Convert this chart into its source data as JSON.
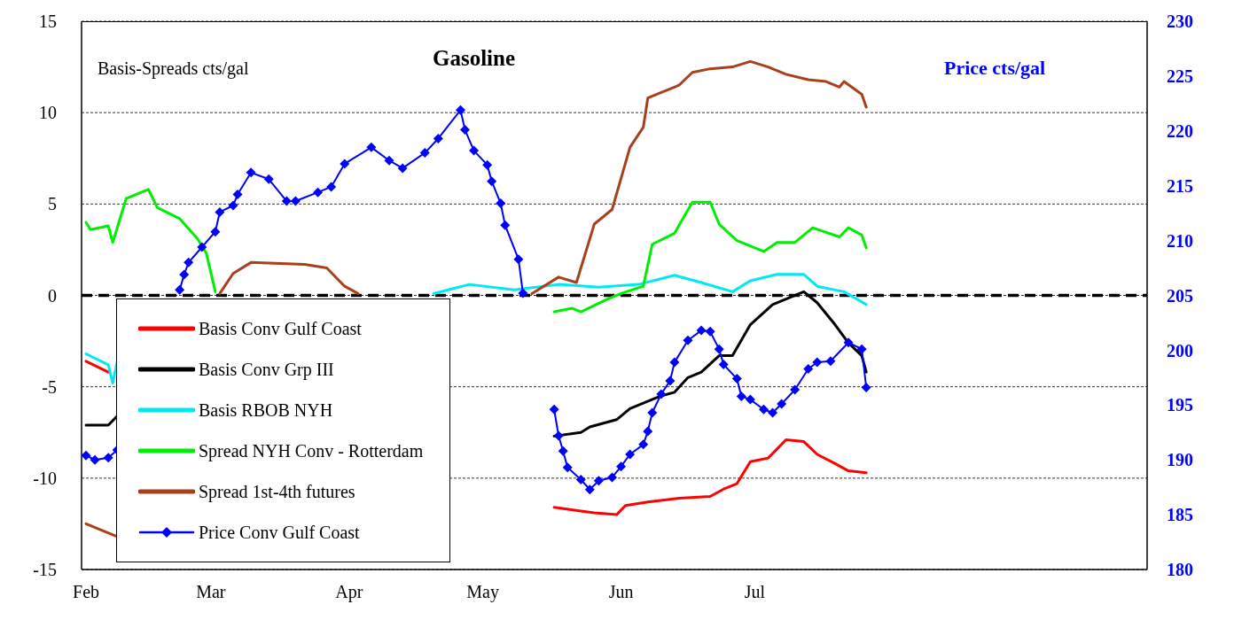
{
  "chart_data": {
    "type": "line",
    "title": "Gasoline",
    "ylabel": "Basis-Spreads cts/gal",
    "y2label": "Price cts/gal",
    "xlim": [
      "--01-31",
      "--09-27"
    ],
    "xticks": [
      {
        "value": "--02-01",
        "label": "Feb"
      },
      {
        "value": "--03-01",
        "label": "Mar"
      },
      {
        "value": "--04-01",
        "label": "Apr"
      },
      {
        "value": "--05-01",
        "label": "May"
      },
      {
        "value": "--06-01",
        "label": "Jun"
      },
      {
        "value": "--07-01",
        "label": "Jul"
      }
    ],
    "ylim": [
      -15,
      15
    ],
    "yticks": [
      -15,
      -10,
      -5,
      0,
      5,
      10,
      15
    ],
    "y2lim": [
      180,
      230
    ],
    "y2ticks": [
      180,
      185,
      190,
      195,
      200,
      205,
      210,
      215,
      220,
      225,
      230
    ],
    "grid": "y",
    "legend": "bottom left",
    "line_style": "solid",
    "ref_lines": [
      {
        "axis": "y",
        "value": 0,
        "color": "#000000",
        "line_style": "dashed"
      }
    ],
    "series": [
      {
        "name": "Basis Conv Gulf Coast",
        "color": "#ff0000",
        "x": [
          "--02-01",
          "--02-06",
          "--03-15",
          "--05-17",
          "--05-23",
          "--05-26",
          "--05-31",
          "--06-02",
          "--06-07",
          "--06-14",
          "--06-21",
          "--06-24",
          "--06-27",
          "--06-30",
          "--07-04",
          "--07-08",
          "--07-12",
          "--07-15",
          "--07-19",
          "--07-22",
          "--07-26"
        ],
        "values": [
          -3.6,
          -4.2,
          null,
          -11.6,
          -11.8,
          -11.9,
          -12.0,
          -11.5,
          -11.3,
          -11.1,
          -11.0,
          -10.6,
          -10.3,
          -9.1,
          -8.9,
          -7.9,
          -8.0,
          -8.7,
          -9.2,
          -9.6,
          -9.7
        ]
      },
      {
        "name": "Basis Conv Grp III",
        "color": "#000000",
        "x": [
          "--02-01",
          "--02-06",
          "--02-08",
          "--03-15",
          "--05-17",
          "--05-23",
          "--05-25",
          "--05-31",
          "--06-03",
          "--06-06",
          "--06-10",
          "--06-13",
          "--06-16",
          "--06-19",
          "--06-23",
          "--06-26",
          "--06-30",
          "--07-05",
          "--07-12",
          "--07-15",
          "--07-19",
          "--07-22",
          "--07-25",
          "--07-26"
        ],
        "values": [
          -7.1,
          -7.1,
          -6.6,
          null,
          -7.7,
          -7.5,
          -7.2,
          -6.8,
          -6.2,
          -5.9,
          -5.5,
          -5.3,
          -4.5,
          -4.2,
          -3.3,
          -3.3,
          -1.6,
          -0.5,
          0.2,
          -0.4,
          -1.6,
          -2.6,
          -3.3,
          -4.2
        ]
      },
      {
        "name": "Basis RBOB NYH",
        "color": "#00e8f4",
        "x": [
          "--02-01",
          "--02-06",
          "--02-07",
          "--02-08",
          "--03-15",
          "--04-20",
          "--04-28",
          "--05-08",
          "--05-18",
          "--05-27",
          "--06-05",
          "--06-13",
          "--06-19",
          "--06-26",
          "--06-30",
          "--07-06",
          "--07-12",
          "--07-15",
          "--07-21",
          "--07-26"
        ],
        "values": [
          -3.2,
          -3.8,
          -4.8,
          -3.6,
          null,
          0.1,
          0.6,
          0.3,
          0.6,
          0.45,
          0.6,
          1.1,
          0.7,
          0.2,
          0.8,
          1.15,
          1.15,
          0.5,
          0.2,
          -0.5
        ]
      },
      {
        "name": "Spread NYH Conv - Rotterdam",
        "color": "#00ee00",
        "x": [
          "--02-01",
          "--02-02",
          "--02-06",
          "--02-07",
          "--02-10",
          "--02-15",
          "--02-17",
          "--02-22",
          "--02-26",
          "--02-28",
          "--03-02",
          "--04-01",
          "--05-17",
          "--05-21",
          "--05-23",
          "--05-29",
          "--06-01",
          "--06-06",
          "--06-08",
          "--06-13",
          "--06-17",
          "--06-21",
          "--06-23",
          "--06-27",
          "--07-03",
          "--07-06",
          "--07-10",
          "--07-14",
          "--07-20",
          "--07-22",
          "--07-25",
          "--07-26"
        ],
        "values": [
          4.0,
          3.6,
          3.8,
          2.9,
          5.3,
          5.8,
          4.8,
          4.2,
          3.1,
          2.3,
          0.2,
          null,
          -0.9,
          -0.7,
          -0.9,
          -0.2,
          0.1,
          0.5,
          2.8,
          3.4,
          5.1,
          5.1,
          3.9,
          3.0,
          2.4,
          2.9,
          2.9,
          3.7,
          3.2,
          3.7,
          3.3,
          2.6
        ]
      },
      {
        "name": "Spread 1st-4th futures",
        "color": "#a8401c",
        "x": [
          "--02-01",
          "--02-08",
          "--02-20",
          "--03-03",
          "--03-06",
          "--03-10",
          "--03-22",
          "--03-27",
          "--03-31",
          "--04-03",
          "--04-20",
          "--05-12",
          "--05-18",
          "--05-22",
          "--05-26",
          "--05-30",
          "--06-03",
          "--06-06",
          "--06-07",
          "--06-11",
          "--06-14",
          "--06-17",
          "--06-21",
          "--06-26",
          "--06-30",
          "--07-04",
          "--07-08",
          "--07-13",
          "--07-17",
          "--07-20",
          "--07-21",
          "--07-25",
          "--07-26"
        ],
        "values": [
          -12.5,
          -13.2,
          null,
          0.1,
          1.2,
          1.8,
          1.7,
          1.5,
          0.5,
          0.1,
          null,
          0.1,
          1.0,
          0.7,
          3.9,
          4.7,
          8.1,
          9.2,
          10.8,
          11.2,
          11.5,
          12.2,
          12.4,
          12.5,
          12.8,
          12.5,
          12.1,
          11.8,
          11.7,
          11.4,
          11.7,
          11.0,
          10.3
        ]
      },
      {
        "name": "Price Conv Gulf Coast",
        "color": "#0000ff",
        "axis": "y2",
        "marker": "diamond",
        "x": [
          "--02-01",
          "--02-03",
          "--02-06",
          "--02-08",
          "--02-15",
          "--02-22",
          "--02-23",
          "--02-24",
          "--02-27",
          "--03-02",
          "--03-03",
          "--03-06",
          "--03-07",
          "--03-10",
          "--03-14",
          "--03-18",
          "--03-20",
          "--03-25",
          "--03-28",
          "--03-31",
          "--04-06",
          "--04-10",
          "--04-13",
          "--04-18",
          "--04-21",
          "--04-26",
          "--04-27",
          "--04-29",
          "--05-02",
          "--05-03",
          "--05-05",
          "--05-06",
          "--05-09",
          "--05-10",
          "--05-13",
          "--05-17",
          "--05-18",
          "--05-19",
          "--05-20",
          "--05-23",
          "--05-25",
          "--05-27",
          "--05-30",
          "--06-01",
          "--06-03",
          "--06-06",
          "--06-07",
          "--06-08",
          "--06-10",
          "--06-12",
          "--06-13",
          "--06-16",
          "--06-19",
          "--06-21",
          "--06-23",
          "--06-24",
          "--06-27",
          "--06-28",
          "--06-30",
          "--07-03",
          "--07-05",
          "--07-07",
          "--07-10",
          "--07-13",
          "--07-15",
          "--07-18",
          "--07-22",
          "--07-25",
          "--07-26"
        ],
        "values": [
          190.4,
          190.0,
          190.2,
          190.9,
          null,
          205.5,
          206.9,
          208.0,
          209.4,
          210.8,
          212.6,
          213.2,
          214.2,
          216.2,
          215.6,
          213.6,
          213.6,
          214.4,
          214.9,
          217.0,
          218.5,
          217.3,
          216.6,
          218.0,
          219.3,
          221.9,
          220.1,
          218.2,
          216.9,
          215.4,
          213.4,
          211.4,
          208.3,
          205.2,
          null,
          194.6,
          192.2,
          190.8,
          189.3,
          188.2,
          187.3,
          188.1,
          188.4,
          189.4,
          190.5,
          191.4,
          192.6,
          194.3,
          196.0,
          197.2,
          198.9,
          200.9,
          201.8,
          201.7,
          200.1,
          198.7,
          197.4,
          195.8,
          195.5,
          194.6,
          194.3,
          195.1,
          196.4,
          198.3,
          198.9,
          199.0,
          200.7,
          200.1,
          196.6
        ]
      }
    ]
  }
}
